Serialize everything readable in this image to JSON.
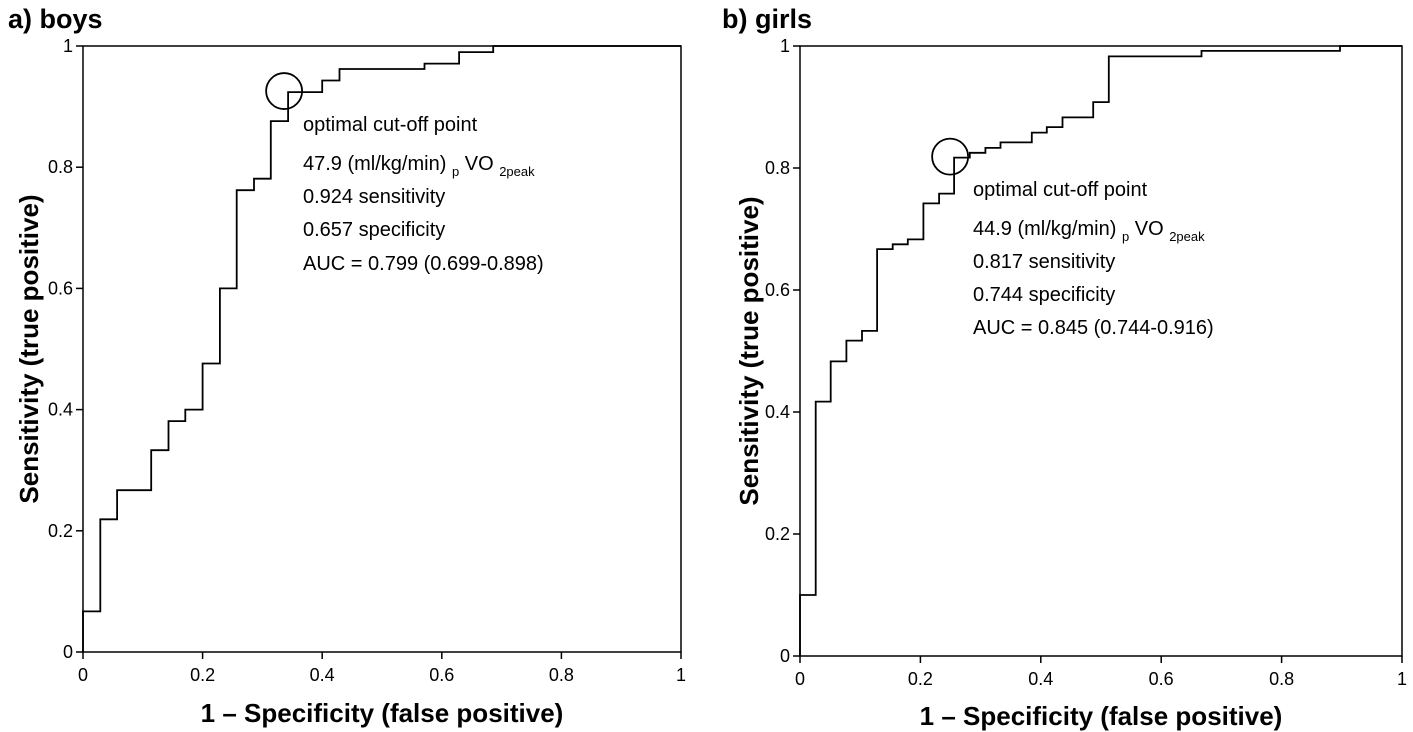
{
  "chart_data": [
    {
      "type": "line",
      "panel_title": "a) boys",
      "xlabel": "1 – Specificity (false positive)",
      "ylabel": "Sensitivity (true positive)",
      "xlim": [
        0,
        1
      ],
      "ylim": [
        0,
        1
      ],
      "x_ticks": [
        "0",
        "0.2",
        "0.4",
        "0.6",
        "0.8",
        "1"
      ],
      "y_ticks": [
        "0",
        "0.2",
        "0.4",
        "0.6",
        "0.8",
        "1"
      ],
      "grid": false,
      "series": [
        {
          "points": [
            [
              0,
              0
            ],
            [
              0,
              0.067
            ],
            [
              0.029,
              0.067
            ],
            [
              0.029,
              0.219
            ],
            [
              0.057,
              0.219
            ],
            [
              0.057,
              0.267
            ],
            [
              0.114,
              0.267
            ],
            [
              0.114,
              0.333
            ],
            [
              0.143,
              0.333
            ],
            [
              0.143,
              0.381
            ],
            [
              0.171,
              0.381
            ],
            [
              0.171,
              0.4
            ],
            [
              0.2,
              0.4
            ],
            [
              0.2,
              0.476
            ],
            [
              0.229,
              0.476
            ],
            [
              0.229,
              0.6
            ],
            [
              0.257,
              0.6
            ],
            [
              0.257,
              0.762
            ],
            [
              0.286,
              0.762
            ],
            [
              0.286,
              0.781
            ],
            [
              0.314,
              0.781
            ],
            [
              0.314,
              0.876
            ],
            [
              0.343,
              0.876
            ],
            [
              0.343,
              0.924
            ],
            [
              0.4,
              0.924
            ],
            [
              0.4,
              0.943
            ],
            [
              0.429,
              0.943
            ],
            [
              0.429,
              0.962
            ],
            [
              0.571,
              0.962
            ],
            [
              0.571,
              0.971
            ],
            [
              0.629,
              0.971
            ],
            [
              0.629,
              0.99
            ],
            [
              0.686,
              0.99
            ],
            [
              0.686,
              1.0
            ],
            [
              1.0,
              1.0
            ]
          ]
        }
      ],
      "optimal_point": {
        "x": 0.343,
        "y": 0.924
      },
      "annotation": {
        "label": "optimal cut-off point",
        "cutoff_value": "47.9 (ml/kg/min)",
        "cutoff_prefix_sub": "p",
        "cutoff_main": "VO",
        "cutoff_sub": "2peak",
        "sensitivity": "0.924 sensitivity",
        "specificity": "0.657 specificity",
        "auc": "AUC = 0.799 (0.699-0.898)"
      }
    },
    {
      "type": "line",
      "panel_title": "b) girls",
      "xlabel": "1 – Specificity (false positive)",
      "ylabel": "Sensitivity (true positive)",
      "xlim": [
        0,
        1
      ],
      "ylim": [
        0,
        1
      ],
      "x_ticks": [
        "0",
        "0.2",
        "0.4",
        "0.6",
        "0.8",
        "1"
      ],
      "y_ticks": [
        "0",
        "0.2",
        "0.4",
        "0.6",
        "0.8",
        "1"
      ],
      "grid": false,
      "series": [
        {
          "points": [
            [
              0,
              0
            ],
            [
              0,
              0.1
            ],
            [
              0.026,
              0.1
            ],
            [
              0.026,
              0.417
            ],
            [
              0.051,
              0.417
            ],
            [
              0.051,
              0.483
            ],
            [
              0.077,
              0.483
            ],
            [
              0.077,
              0.517
            ],
            [
              0.103,
              0.517
            ],
            [
              0.103,
              0.533
            ],
            [
              0.128,
              0.533
            ],
            [
              0.128,
              0.667
            ],
            [
              0.154,
              0.667
            ],
            [
              0.154,
              0.675
            ],
            [
              0.179,
              0.675
            ],
            [
              0.179,
              0.683
            ],
            [
              0.205,
              0.683
            ],
            [
              0.205,
              0.742
            ],
            [
              0.231,
              0.742
            ],
            [
              0.231,
              0.758
            ],
            [
              0.256,
              0.758
            ],
            [
              0.256,
              0.817
            ],
            [
              0.282,
              0.817
            ],
            [
              0.282,
              0.825
            ],
            [
              0.308,
              0.825
            ],
            [
              0.308,
              0.833
            ],
            [
              0.333,
              0.833
            ],
            [
              0.333,
              0.842
            ],
            [
              0.385,
              0.842
            ],
            [
              0.385,
              0.858
            ],
            [
              0.41,
              0.858
            ],
            [
              0.41,
              0.867
            ],
            [
              0.436,
              0.867
            ],
            [
              0.436,
              0.883
            ],
            [
              0.487,
              0.883
            ],
            [
              0.487,
              0.908
            ],
            [
              0.513,
              0.908
            ],
            [
              0.513,
              0.983
            ],
            [
              0.667,
              0.983
            ],
            [
              0.667,
              0.992
            ],
            [
              0.897,
              0.992
            ],
            [
              0.897,
              1.0
            ],
            [
              1.0,
              1.0
            ]
          ]
        }
      ],
      "optimal_point": {
        "x": 0.256,
        "y": 0.817
      },
      "annotation": {
        "label": "optimal cut-off point",
        "cutoff_value": "44.9 (ml/kg/min)",
        "cutoff_prefix_sub": "p",
        "cutoff_main": "VO",
        "cutoff_sub": "2peak",
        "sensitivity": "0.817 sensitivity",
        "specificity": "0.744 specificity",
        "auc": "AUC = 0.845 (0.744-0.916)"
      }
    }
  ]
}
